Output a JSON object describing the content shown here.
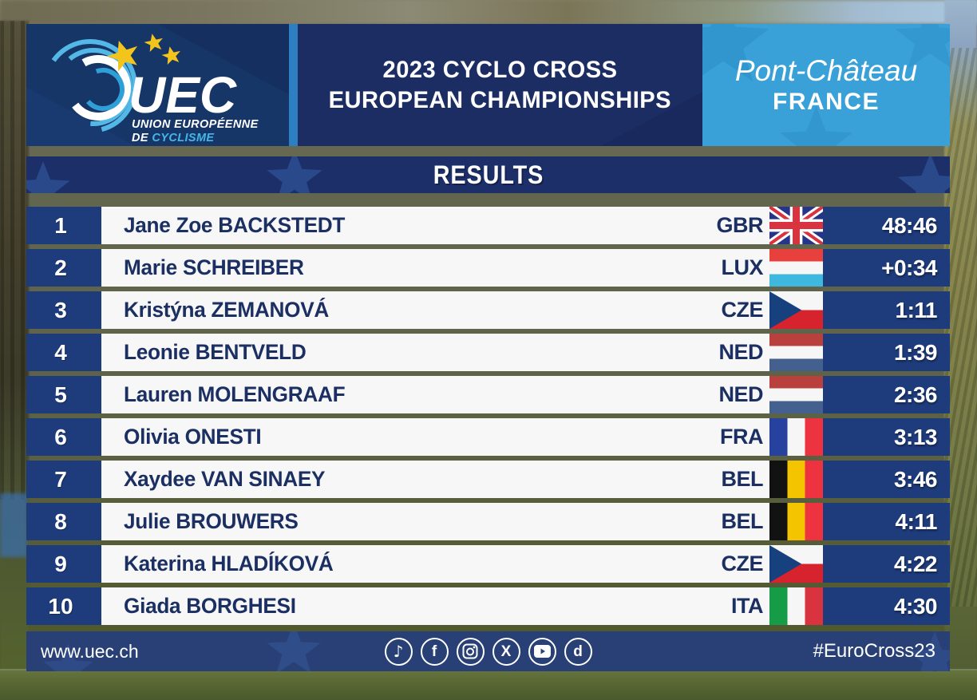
{
  "header": {
    "logo": {
      "org": "UEC",
      "line1": "UNION EUROPÉENNE",
      "line2_de": "DE ",
      "line2_cyclisme": "CYCLISME"
    },
    "title_line1": "2023 CYCLO CROSS",
    "title_line2": "EUROPEAN CHAMPIONSHIPS",
    "location": {
      "city": "Pont-Château",
      "country": "FRANCE"
    }
  },
  "results_bar": {
    "label": "RESULTS"
  },
  "table": {
    "rows": [
      {
        "rank": "1",
        "name": "Jane Zoe BACKSTEDT",
        "country": "GBR",
        "time": "48:46"
      },
      {
        "rank": "2",
        "name": "Marie SCHREIBER",
        "country": "LUX",
        "time": "+0:34"
      },
      {
        "rank": "3",
        "name": "Kristýna ZEMANOVÁ",
        "country": "CZE",
        "time": "1:11"
      },
      {
        "rank": "4",
        "name": "Leonie BENTVELD",
        "country": "NED",
        "time": "1:39"
      },
      {
        "rank": "5",
        "name": "Lauren MOLENGRAAF",
        "country": "NED",
        "time": "2:36"
      },
      {
        "rank": "6",
        "name": "Olivia ONESTI",
        "country": "FRA",
        "time": "3:13"
      },
      {
        "rank": "7",
        "name": "Xaydee VAN SINAEY",
        "country": "BEL",
        "time": "3:46"
      },
      {
        "rank": "8",
        "name": "Julie BROUWERS",
        "country": "BEL",
        "time": "4:11"
      },
      {
        "rank": "9",
        "name": "Katerina HLADÍKOVÁ",
        "country": "CZE",
        "time": "4:22"
      },
      {
        "rank": "10",
        "name": "Giada BORGHESI",
        "country": "ITA",
        "time": "4:30"
      }
    ]
  },
  "footer": {
    "website": "www.uec.ch",
    "hashtag": "#EuroCross23",
    "social_icons": [
      "tiktok-icon",
      "facebook-icon",
      "instagram-icon",
      "x-icon",
      "youtube-icon",
      "dailymotion-icon"
    ]
  },
  "colors": {
    "panel_navy": "#1c2d63",
    "row_navy": "#1e3c7c",
    "light_blue": "#3aa1d8",
    "divider_blue": "#2d7fc2",
    "star_gold": "#f3c51c",
    "white_cell": "#f6f7f6",
    "text_navy": "#1b2f63"
  }
}
